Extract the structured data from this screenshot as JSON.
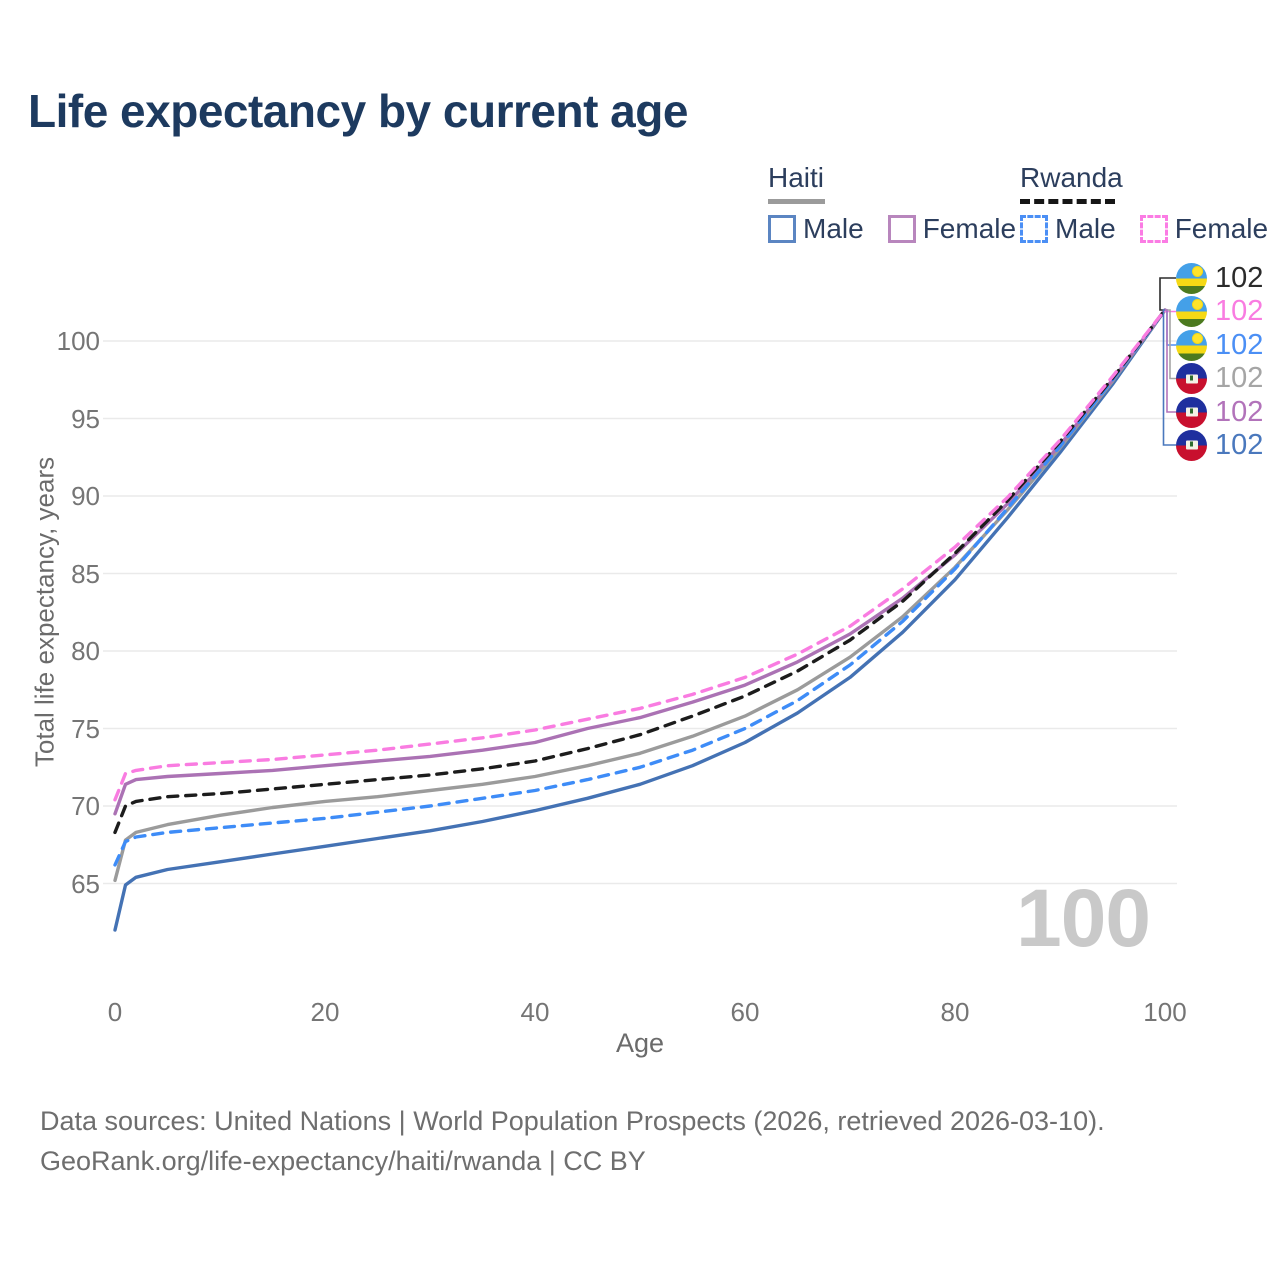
{
  "title": "Life expectancy by current age",
  "legend": {
    "groups": [
      {
        "name": "Haiti",
        "line_style": "solid",
        "rule_color": "#9b9b9b",
        "rule_width": 57,
        "items": [
          {
            "label": "Male",
            "color": "#5b85c2",
            "dashed": false
          },
          {
            "label": "Female",
            "color": "#b886bd",
            "dashed": false
          }
        ]
      },
      {
        "name": "Rwanda",
        "line_style": "dashed",
        "rule_color": "#161616",
        "rule_width": 95,
        "items": [
          {
            "label": "Male",
            "color": "#4b8ff5",
            "dashed": true
          },
          {
            "label": "Female",
            "color": "#fb7ce4",
            "dashed": true
          }
        ]
      }
    ]
  },
  "chart_data": {
    "type": "line",
    "title": "Life expectancy by current age",
    "xlabel": "Age",
    "ylabel": "Total life expectancy, years",
    "xticks": [
      0,
      20,
      40,
      60,
      80,
      100
    ],
    "yticks": [
      65,
      70,
      75,
      80,
      85,
      90,
      95,
      100
    ],
    "xlim": [
      0,
      100
    ],
    "ylim": [
      61,
      103
    ],
    "grid": "horizontal",
    "legend_position": "top-right",
    "ages": [
      0,
      1,
      2,
      5,
      10,
      15,
      20,
      25,
      30,
      35,
      40,
      45,
      50,
      55,
      60,
      65,
      70,
      75,
      80,
      85,
      90,
      95,
      100
    ],
    "series": [
      {
        "name": "Haiti Male",
        "country": "Haiti",
        "sex": "Male",
        "color": "#4472b4",
        "dashed": false,
        "values": [
          62.0,
          64.9,
          65.4,
          65.9,
          66.4,
          66.9,
          67.4,
          67.9,
          68.4,
          69.0,
          69.7,
          70.5,
          71.4,
          72.6,
          74.1,
          76.0,
          78.3,
          81.2,
          84.6,
          88.6,
          92.8,
          97.2,
          102
        ]
      },
      {
        "name": "Haiti Both sexes",
        "country": "Haiti",
        "sex": "Both",
        "color": "#9b9b9b",
        "dashed": false,
        "values": [
          65.2,
          67.8,
          68.3,
          68.8,
          69.4,
          69.9,
          70.3,
          70.6,
          71.0,
          71.4,
          71.9,
          72.6,
          73.4,
          74.5,
          75.8,
          77.5,
          79.6,
          82.2,
          85.4,
          89.1,
          93.1,
          97.4,
          102
        ]
      },
      {
        "name": "Haiti Female",
        "country": "Haiti",
        "sex": "Female",
        "color": "#ab72b4",
        "dashed": false,
        "values": [
          69.5,
          71.4,
          71.7,
          71.9,
          72.1,
          72.3,
          72.6,
          72.9,
          73.2,
          73.6,
          74.1,
          75.0,
          75.7,
          76.7,
          77.8,
          79.3,
          81.1,
          83.4,
          86.2,
          89.5,
          93.3,
          97.5,
          102
        ]
      },
      {
        "name": "Rwanda Male",
        "country": "Rwanda",
        "sex": "Male",
        "color": "#3e8cf7",
        "dashed": true,
        "values": [
          66.2,
          67.7,
          68.0,
          68.3,
          68.6,
          68.9,
          69.2,
          69.6,
          70.0,
          70.5,
          71.0,
          71.7,
          72.5,
          73.6,
          75.0,
          76.8,
          79.1,
          81.9,
          85.3,
          89.2,
          93.2,
          97.5,
          102
        ]
      },
      {
        "name": "Rwanda Both sexes",
        "country": "Rwanda",
        "sex": "Both",
        "color": "#1c1c1c",
        "dashed": true,
        "values": [
          68.3,
          70.0,
          70.3,
          70.6,
          70.8,
          71.1,
          71.4,
          71.7,
          72.0,
          72.4,
          72.9,
          73.7,
          74.6,
          75.8,
          77.1,
          78.7,
          80.7,
          83.2,
          86.3,
          89.7,
          93.5,
          97.6,
          102
        ]
      },
      {
        "name": "Rwanda Female",
        "country": "Rwanda",
        "sex": "Female",
        "color": "#f97ce1",
        "dashed": true,
        "values": [
          70.4,
          72.1,
          72.3,
          72.6,
          72.8,
          73.0,
          73.3,
          73.6,
          74.0,
          74.4,
          74.9,
          75.6,
          76.3,
          77.2,
          78.3,
          79.8,
          81.6,
          84.0,
          86.7,
          89.9,
          93.6,
          97.7,
          102
        ]
      }
    ],
    "end_labels": [
      {
        "flag": "rwanda",
        "series": "Rwanda Both sexes",
        "value": "102",
        "color": "#2b2b2b"
      },
      {
        "flag": "rwanda",
        "series": "Rwanda Female",
        "value": "102",
        "color": "#f97ce1"
      },
      {
        "flag": "rwanda",
        "series": "Rwanda Male",
        "value": "102",
        "color": "#4b8ff5"
      },
      {
        "flag": "haiti",
        "series": "Haiti Both sexes",
        "value": "102",
        "color": "#a5a5a5"
      },
      {
        "flag": "haiti",
        "series": "Haiti Female",
        "value": "102",
        "color": "#b273ba"
      },
      {
        "flag": "haiti",
        "series": "Haiti Male",
        "value": "102",
        "color": "#4a78bd"
      }
    ],
    "end_value_at_age": 100
  },
  "watermark": "100",
  "footer": {
    "line1": "Data sources: United Nations | World Population Prospects (2026, retrieved 2026-03-10).",
    "line2": "GeoRank.org/life-expectancy/haiti/rwanda | CC BY"
  }
}
